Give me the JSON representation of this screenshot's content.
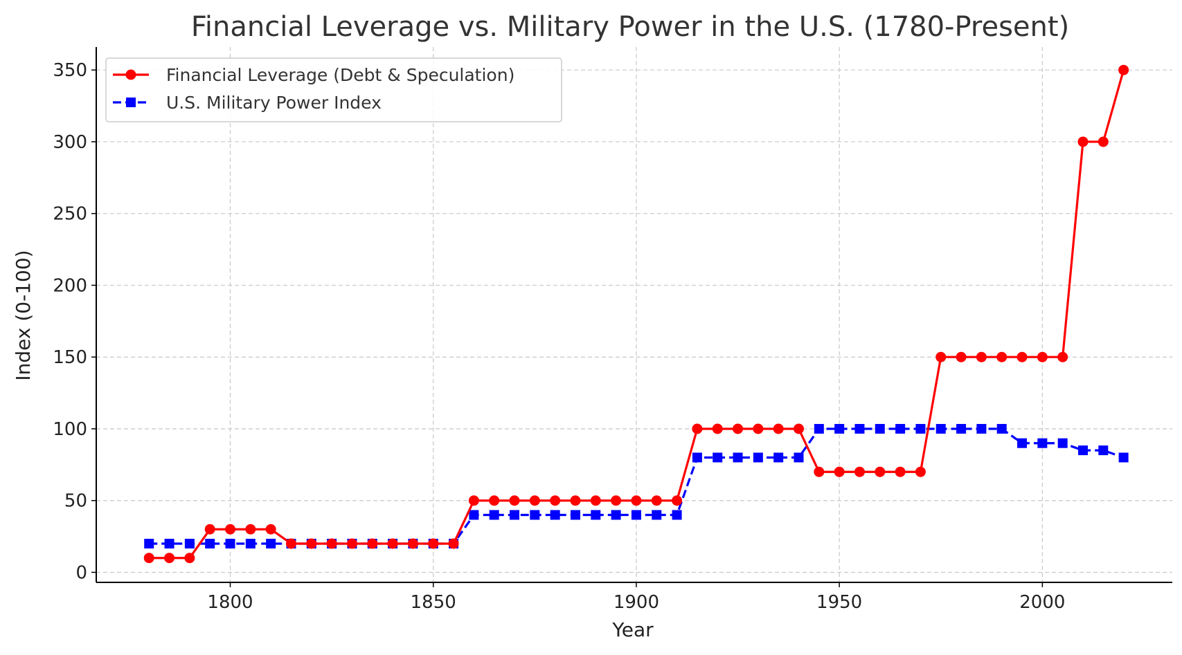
{
  "chart_data": {
    "type": "line",
    "title": "Financial Leverage vs. Military Power in the U.S. (1780-Present)",
    "xlabel": "Year",
    "ylabel": "Index (0-100)",
    "xlim": [
      1767,
      2032
    ],
    "ylim": [
      -7,
      366
    ],
    "x_ticks": [
      1800,
      1850,
      1900,
      1950,
      2000
    ],
    "y_ticks": [
      0,
      50,
      100,
      150,
      200,
      250,
      300,
      350
    ],
    "grid": true,
    "legend_position": "top-left",
    "x": [
      1780,
      1785,
      1790,
      1795,
      1800,
      1805,
      1810,
      1815,
      1820,
      1825,
      1830,
      1835,
      1840,
      1845,
      1850,
      1855,
      1860,
      1865,
      1870,
      1875,
      1880,
      1885,
      1890,
      1895,
      1900,
      1905,
      1910,
      1915,
      1920,
      1925,
      1930,
      1935,
      1940,
      1945,
      1950,
      1955,
      1960,
      1965,
      1970,
      1975,
      1980,
      1985,
      1990,
      1995,
      2000,
      2005,
      2010,
      2015,
      2020
    ],
    "series": [
      {
        "name": "Financial Leverage (Debt & Speculation)",
        "color": "#ff0000",
        "line_style": "solid",
        "marker": "circle",
        "values": [
          10,
          10,
          10,
          30,
          30,
          30,
          30,
          20,
          20,
          20,
          20,
          20,
          20,
          20,
          20,
          20,
          50,
          50,
          50,
          50,
          50,
          50,
          50,
          50,
          50,
          50,
          50,
          100,
          100,
          100,
          100,
          100,
          100,
          70,
          70,
          70,
          70,
          70,
          70,
          150,
          150,
          150,
          150,
          150,
          150,
          150,
          300,
          300,
          350
        ]
      },
      {
        "name": "U.S. Military Power Index",
        "color": "#0000ff",
        "line_style": "dashed",
        "marker": "square",
        "values": [
          20,
          20,
          20,
          20,
          20,
          20,
          20,
          20,
          20,
          20,
          20,
          20,
          20,
          20,
          20,
          20,
          40,
          40,
          40,
          40,
          40,
          40,
          40,
          40,
          40,
          40,
          40,
          80,
          80,
          80,
          80,
          80,
          80,
          100,
          100,
          100,
          100,
          100,
          100,
          100,
          100,
          100,
          100,
          90,
          90,
          90,
          85,
          85,
          80
        ]
      }
    ]
  }
}
